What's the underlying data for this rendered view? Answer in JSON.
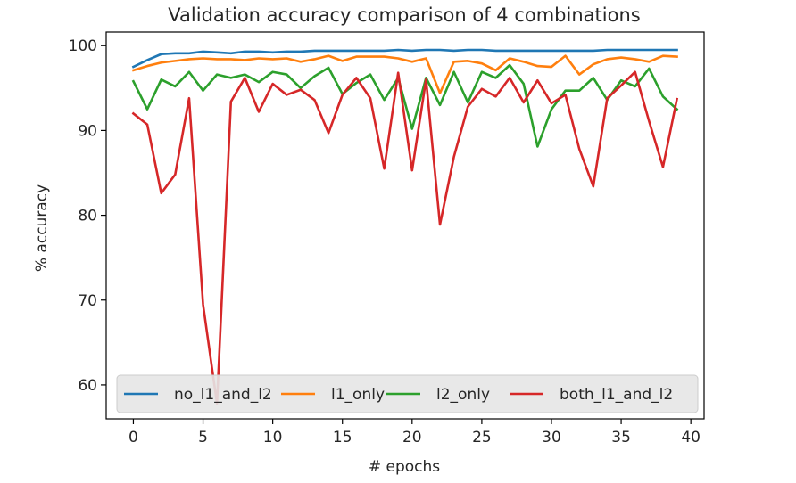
{
  "chart_data": {
    "type": "line",
    "title": "Validation accuracy comparison of 4 combinations",
    "xlabel": "# epochs",
    "ylabel": "% accuracy",
    "xlim": [
      -1.95,
      40.95
    ],
    "ylim": [
      56.0,
      101.6
    ],
    "xticks": [
      0,
      5,
      10,
      15,
      20,
      25,
      30,
      35,
      40
    ],
    "yticks": [
      60,
      70,
      80,
      90,
      100
    ],
    "grid": false,
    "legend_position": "lower-center",
    "legend_columns": 4,
    "x": [
      0,
      1,
      2,
      3,
      4,
      5,
      6,
      7,
      8,
      9,
      10,
      11,
      12,
      13,
      14,
      15,
      16,
      17,
      18,
      19,
      20,
      21,
      22,
      23,
      24,
      25,
      26,
      27,
      28,
      29,
      30,
      31,
      32,
      33,
      34,
      35,
      36,
      37,
      38,
      39
    ],
    "series": [
      {
        "name": "no_l1_and_l2",
        "color": "#1f77b4",
        "values": [
          97.5,
          98.3,
          99.0,
          99.1,
          99.1,
          99.3,
          99.2,
          99.1,
          99.3,
          99.3,
          99.2,
          99.3,
          99.3,
          99.4,
          99.4,
          99.4,
          99.4,
          99.4,
          99.4,
          99.5,
          99.4,
          99.5,
          99.5,
          99.4,
          99.5,
          99.5,
          99.4,
          99.4,
          99.4,
          99.4,
          99.4,
          99.4,
          99.4,
          99.4,
          99.5,
          99.5,
          99.5,
          99.5,
          99.5,
          99.5
        ]
      },
      {
        "name": "l1_only",
        "color": "#ff7f0e",
        "values": [
          97.1,
          97.6,
          98.0,
          98.2,
          98.4,
          98.5,
          98.4,
          98.4,
          98.3,
          98.5,
          98.4,
          98.5,
          98.1,
          98.4,
          98.8,
          98.2,
          98.7,
          98.7,
          98.7,
          98.5,
          98.1,
          98.5,
          94.4,
          98.1,
          98.2,
          97.9,
          97.1,
          98.5,
          98.1,
          97.6,
          97.5,
          98.8,
          96.6,
          97.8,
          98.4,
          98.6,
          98.4,
          98.1,
          98.8,
          98.7
        ]
      },
      {
        "name": "l2_only",
        "color": "#2ca02c",
        "values": [
          95.8,
          92.5,
          96.0,
          95.2,
          96.9,
          94.7,
          96.6,
          96.2,
          96.6,
          95.7,
          96.9,
          96.6,
          95.0,
          96.4,
          97.4,
          94.3,
          95.6,
          96.6,
          93.6,
          96.2,
          90.2,
          96.2,
          93.0,
          96.9,
          93.3,
          96.9,
          96.2,
          97.7,
          95.5,
          88.1,
          92.5,
          94.7,
          94.7,
          96.2,
          93.6,
          95.9,
          95.2,
          97.3,
          94.0,
          92.5
        ]
      },
      {
        "name": "both_l1_and_l2",
        "color": "#d62728",
        "values": [
          92.0,
          90.7,
          82.6,
          84.8,
          93.8,
          69.5,
          57.8,
          93.4,
          96.2,
          92.2,
          95.5,
          94.2,
          94.8,
          93.6,
          89.7,
          94.2,
          96.2,
          93.8,
          85.5,
          96.8,
          85.3,
          96.0,
          78.9,
          86.9,
          92.8,
          94.9,
          94.0,
          96.2,
          93.3,
          95.9,
          93.2,
          94.2,
          87.8,
          83.4,
          93.8,
          95.3,
          96.9,
          91.1,
          85.7,
          93.7
        ]
      }
    ]
  }
}
